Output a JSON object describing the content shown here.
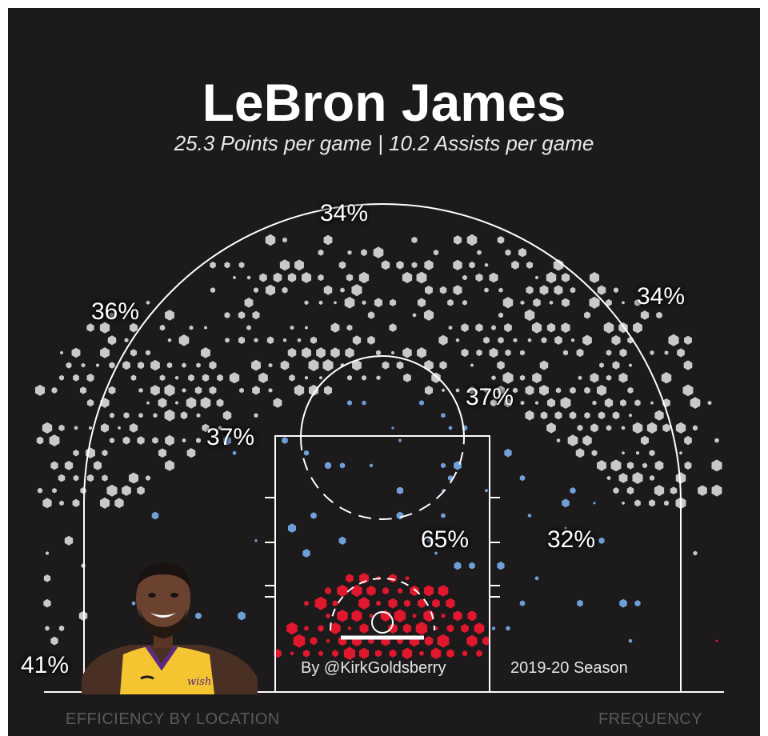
{
  "header": {
    "title": "LeBron James",
    "subtitle": "25.3 Points per game | 10.2 Assists per game"
  },
  "credits": {
    "author": "By @KirkGoldsberry",
    "season": "2019-20 Season"
  },
  "footer": {
    "left": "EFFICIENCY BY LOCATION",
    "right": "FREQUENCY"
  },
  "colors": {
    "background": "#1c1a1b",
    "three_point": "#c9c9c9",
    "mid_range": "#6f9fd8",
    "paint": "#e0182d",
    "court_lines": "#ffffff",
    "jersey": "#f4c431"
  },
  "portrait": {
    "icon": "player-portrait-icon",
    "jersey_text": "wish"
  },
  "chart_data": {
    "type": "heatmap",
    "title": "LeBron James",
    "subtitle": "25.3 Points per game | 10.2 Assists per game",
    "zones": [
      {
        "label": "41%",
        "zone": "left corner three",
        "fg_pct": 41,
        "color": "#e0182d"
      },
      {
        "label": "36%",
        "zone": "left wing three",
        "fg_pct": 36,
        "color": "#c9c9c9"
      },
      {
        "label": "34%",
        "zone": "top of key three",
        "fg_pct": 34,
        "color": "#c9c9c9"
      },
      {
        "label": "34%",
        "zone": "right wing three",
        "fg_pct": 34,
        "color": "#c9c9c9"
      },
      {
        "label": "37%",
        "zone": "left mid-range",
        "fg_pct": 37,
        "color": "#6f9fd8"
      },
      {
        "label": "37%",
        "zone": "right mid-range (top)",
        "fg_pct": 37,
        "color": "#6f9fd8"
      },
      {
        "label": "32%",
        "zone": "right mid-range (baseline)",
        "fg_pct": 32,
        "color": "#6f9fd8"
      },
      {
        "label": "65%",
        "zone": "restricted area / paint",
        "fg_pct": 65,
        "color": "#e0182d"
      }
    ],
    "legend": {
      "color": "EFFICIENCY BY LOCATION",
      "size": "FREQUENCY"
    }
  }
}
